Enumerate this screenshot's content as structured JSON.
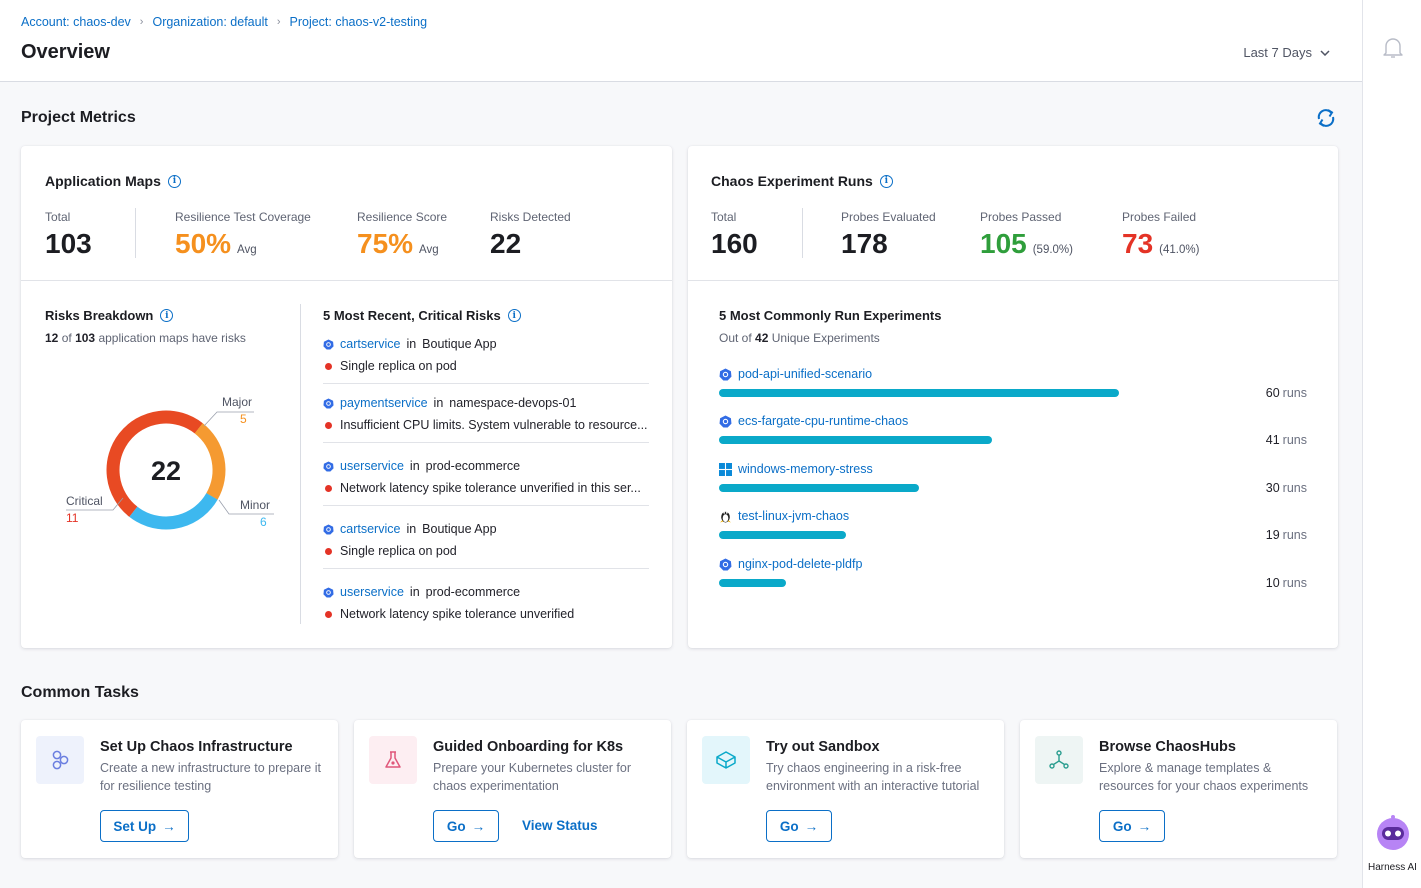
{
  "breadcrumbs": [
    "Account: chaos-dev",
    "Organization: default",
    "Project: chaos-v2-testing"
  ],
  "page_title": "Overview",
  "date_range": "Last 7 Days",
  "project_metrics": {
    "title": "Project Metrics"
  },
  "app_maps": {
    "title": "Application Maps",
    "total_label": "Total",
    "total_value": "103",
    "coverage_label": "Resilience Test Coverage",
    "coverage_value": "50%",
    "coverage_suffix": "Avg",
    "score_label": "Resilience Score",
    "score_value": "75%",
    "score_suffix": "Avg",
    "risks_label": "Risks Detected",
    "risks_value": "22"
  },
  "risks_breakdown": {
    "title": "Risks Breakdown",
    "summary_count": "12",
    "summary_of": "of",
    "summary_total": "103",
    "summary_rest": "application maps have risks",
    "center_value": "22",
    "major_label": "Major",
    "major_value": "5",
    "minor_label": "Minor",
    "minor_value": "6",
    "critical_label": "Critical",
    "critical_value": "11"
  },
  "critical_risks": {
    "title": "5 Most Recent, Critical Risks",
    "items": [
      {
        "service": "cartservice",
        "in": "in",
        "location": "Boutique App",
        "risk": "Single replica on pod"
      },
      {
        "service": "paymentservice",
        "in": "in",
        "location": "namespace-devops-01",
        "risk": "Insufficient CPU limits. System vulnerable to resource..."
      },
      {
        "service": "userservice",
        "in": "in",
        "location": "prod-ecommerce",
        "risk": "Network latency spike tolerance unverified in this ser..."
      },
      {
        "service": "cartservice",
        "in": "in",
        "location": "Boutique App",
        "risk": "Single replica on pod"
      },
      {
        "service": "userservice",
        "in": "in",
        "location": "prod-ecommerce",
        "risk": "Network latency spike tolerance unverified"
      }
    ]
  },
  "experiment_runs": {
    "title": "Chaos Experiment Runs",
    "total_label": "Total",
    "total_value": "160",
    "evaluated_label": "Probes Evaluated",
    "evaluated_value": "178",
    "passed_label": "Probes Passed",
    "passed_value": "105",
    "passed_pct": "(59.0%)",
    "failed_label": "Probes Failed",
    "failed_value": "73",
    "failed_pct": "(41.0%)"
  },
  "common_experiments": {
    "title": "5 Most Commonly Run Experiments",
    "subtitle_pre": "Out of",
    "subtitle_count": "42",
    "subtitle_post": "Unique Experiments",
    "runs_unit": "runs",
    "max_runs": 60,
    "items": [
      {
        "name": "pod-api-unified-scenario",
        "runs": 60,
        "runs_text": "60",
        "icon": "kubernetes-icon"
      },
      {
        "name": "ecs-fargate-cpu-runtime-chaos",
        "runs": 41,
        "runs_text": "41",
        "icon": "kubernetes-icon"
      },
      {
        "name": "windows-memory-stress",
        "runs": 30,
        "runs_text": "30",
        "icon": "windows-icon"
      },
      {
        "name": "test-linux-jvm-chaos",
        "runs": 19,
        "runs_text": "19",
        "icon": "linux-icon"
      },
      {
        "name": "nginx-pod-delete-pldfp",
        "runs": 10,
        "runs_text": "10",
        "icon": "kubernetes-icon"
      }
    ]
  },
  "common_tasks": {
    "title": "Common Tasks",
    "tasks": [
      {
        "title": "Set Up Chaos Infrastructure",
        "desc": "Create a new infrastructure to prepare it for resilience testing",
        "button": "Set Up",
        "icon": "infrastructure-icon"
      },
      {
        "title": "Guided Onboarding for K8s",
        "desc": "Prepare your Kubernetes cluster for chaos experimentation",
        "button": "Go",
        "link": "View Status",
        "icon": "flask-icon"
      },
      {
        "title": "Try out Sandbox",
        "desc": "Try chaos engineering in a risk-free environment with an interactive tutorial",
        "button": "Go",
        "icon": "sandbox-icon"
      },
      {
        "title": "Browse ChaosHubs",
        "desc": "Explore & manage templates & resources for your chaos experiments",
        "button": "Go",
        "icon": "hub-icon"
      }
    ]
  },
  "assistant": {
    "label": "Harness AI"
  },
  "colors": {
    "link": "#0b6fc7",
    "orange": "#f5901e",
    "green": "#2f9e3b",
    "red": "#e43326",
    "bar": "#0aa9c9",
    "critical": "#e84a23",
    "major": "#f59a31",
    "minor": "#3db8ef"
  }
}
